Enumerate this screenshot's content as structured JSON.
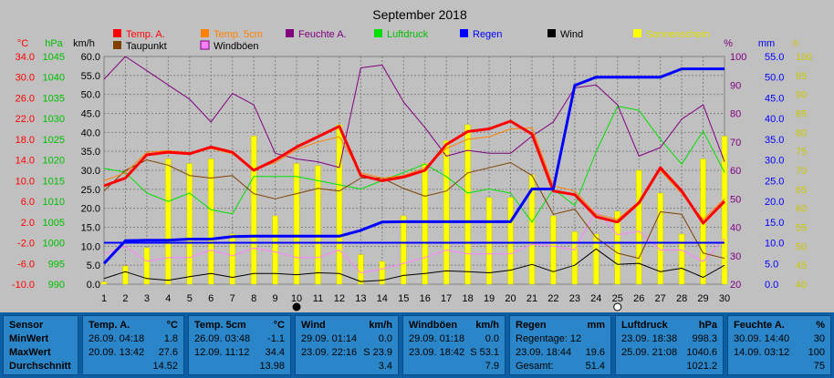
{
  "chart_data": {
    "type": "line",
    "title": "September 2018",
    "x": [
      1,
      2,
      3,
      4,
      5,
      6,
      7,
      8,
      9,
      10,
      11,
      12,
      13,
      14,
      15,
      16,
      17,
      18,
      19,
      20,
      21,
      22,
      23,
      24,
      25,
      26,
      27,
      28,
      29,
      30
    ],
    "axes": {
      "temp": {
        "label": "°C",
        "ticks": [
          "34.0",
          "30.0",
          "26.0",
          "22.0",
          "18.0",
          "14.0",
          "10.0",
          "6.0",
          "2.0",
          "-2.0",
          "-6.0",
          "-10.0"
        ],
        "color": "#ff0000"
      },
      "hpa": {
        "label": "hPa",
        "ticks": [
          "1045",
          "1040",
          "1035",
          "1030",
          "1025",
          "1020",
          "1015",
          "1010",
          "1005",
          "1000",
          "995",
          "990"
        ],
        "color": "#00c000"
      },
      "kmh": {
        "label": "km/h",
        "ticks": [
          "60.0",
          "55.0",
          "50.0",
          "45.0",
          "40.0",
          "35.0",
          "30.0",
          "25.0",
          "20.0",
          "15.0",
          "10.0",
          "5.0",
          "0.0"
        ],
        "color": "#000000"
      },
      "pct": {
        "label": "%",
        "ticks": [
          "100",
          "90",
          "80",
          "70",
          "60",
          "50",
          "40",
          "30",
          "20"
        ],
        "color": "#800080"
      },
      "mm": {
        "label": "mm",
        "ticks": [
          "55.0",
          "50.0",
          "45.0",
          "40.0",
          "35.0",
          "30.0",
          "25.0",
          "20.0",
          "15.0",
          "10.0",
          "5.0",
          "0.0"
        ],
        "color": "#0000ff"
      },
      "h": {
        "label": "h",
        "ticks": [
          "100",
          "95",
          "90",
          "85",
          "80",
          "75",
          "70",
          "65",
          "60",
          "55",
          "50",
          "45",
          "40"
        ],
        "color": "#c8c800"
      }
    },
    "legend": [
      {
        "name": "Temp. A.",
        "color": "#ff0000"
      },
      {
        "name": "Temp. 5cm",
        "color": "#ff8000"
      },
      {
        "name": "Feuchte A.",
        "color": "#800080"
      },
      {
        "name": "Luftdruck",
        "color": "#00e000"
      },
      {
        "name": "Regen",
        "color": "#0000ff"
      },
      {
        "name": "Wind",
        "color": "#000000"
      },
      {
        "name": "Sonnenschein",
        "color": "#ffff00"
      },
      {
        "name": "Taupunkt",
        "color": "#804000"
      },
      {
        "name": "Windböen",
        "color": "#ff80ff"
      }
    ],
    "series": {
      "temp_a": [
        9.0,
        10.5,
        15.0,
        15.5,
        15.2,
        16.5,
        15.5,
        12.0,
        14.0,
        16.5,
        18.5,
        20.5,
        11.0,
        10.0,
        10.7,
        12.0,
        17.0,
        19.5,
        20.0,
        21.5,
        19.0,
        8.0,
        7.3,
        3.0,
        2.0,
        5.7,
        12.5,
        8.0,
        1.8,
        6.0
      ],
      "temp_5cm": [
        10.0,
        11.5,
        15.5,
        15.8,
        15.4,
        16.2,
        15.2,
        12.2,
        13.5,
        16.0,
        17.5,
        18.5,
        11.5,
        10.5,
        11.0,
        12.5,
        16.2,
        18.0,
        18.5,
        20.0,
        20.2,
        9.0,
        8.0,
        3.5,
        2.5,
        6.0,
        12.0,
        7.5,
        2.5,
        6.5
      ],
      "taupunkt": [
        8.0,
        12.0,
        14.0,
        13.0,
        11.0,
        10.5,
        11.0,
        7.5,
        6.5,
        7.5,
        8.5,
        8.0,
        10.5,
        10.5,
        8.5,
        7.0,
        8.0,
        11.5,
        12.5,
        13.5,
        11.0,
        3.5,
        4.5,
        -1.0,
        -4.0,
        -5.0,
        4.0,
        3.5,
        -4.0,
        -5.0
      ],
      "feuchte": [
        92,
        100,
        95,
        90,
        85,
        77,
        87,
        83,
        66,
        64,
        63,
        61,
        96,
        97,
        84,
        75,
        65,
        67,
        66,
        66,
        72,
        77,
        89,
        90,
        83,
        65,
        68,
        78,
        83,
        63
      ],
      "luftdruck": [
        1018,
        1017,
        1012,
        1010,
        1012,
        1008,
        1007,
        1016,
        1016,
        1016,
        1015,
        1014,
        1013,
        1015,
        1017,
        1019,
        1016,
        1012,
        1013,
        1012,
        1005,
        1013,
        1009,
        1022,
        1033,
        1032,
        1025,
        1019,
        1027,
        1017
      ],
      "regen": [
        5.0,
        10.5,
        10.6,
        10.6,
        10.9,
        10.9,
        11.5,
        11.6,
        11.6,
        11.6,
        11.6,
        11.6,
        13.0,
        15.0,
        15.1,
        15.1,
        15.1,
        15.1,
        15.1,
        15.1,
        23.0,
        23.0,
        48.0,
        50.0,
        50.0,
        50.0,
        50.0,
        52.0,
        52.0,
        52.0
      ],
      "regen_baseline": 10.0,
      "wind": [
        1.5,
        3.3,
        1.5,
        1.0,
        2.0,
        2.8,
        1.8,
        2.8,
        2.8,
        2.5,
        3.0,
        2.8,
        0.7,
        1.0,
        2.3,
        2.8,
        3.5,
        3.3,
        3.0,
        3.7,
        5.2,
        3.3,
        5.0,
        9.3,
        5.2,
        5.5,
        3.3,
        4.2,
        1.8,
        5.0
      ],
      "windboeen": [
        8.0,
        10.0,
        6.0,
        7.0,
        7.0,
        9.0,
        7.5,
        9.5,
        8.5,
        7.0,
        7.0,
        9.0,
        3.0,
        4.0,
        5.5,
        7.0,
        9.0,
        8.0,
        8.0,
        8.0,
        10.5,
        10.0,
        9.0,
        19.5,
        13.0,
        14.0,
        9.0,
        9.0,
        6.0,
        12.0
      ],
      "sonnenschein": [
        0.1,
        0.8,
        1.6,
        5.5,
        5.3,
        5.5,
        2.2,
        6.5,
        3.0,
        5.3,
        5.2,
        7.0,
        1.3,
        1.0,
        3.0,
        5.3,
        6.3,
        7.0,
        3.8,
        3.8,
        4.8,
        3.0,
        2.3,
        2.2,
        3.2,
        5.0,
        4.0,
        2.2,
        5.5,
        6.5
      ]
    },
    "markers": [
      "10",
      "25"
    ]
  },
  "stats": [
    {
      "title": "Sensor",
      "unit": "",
      "rows": [
        "MinWert",
        "MaxWert",
        "Durchschnitt"
      ]
    },
    {
      "title": "Temp. A.",
      "unit": "°C",
      "rows": [
        [
          "26.09.",
          "04:18",
          "1.8"
        ],
        [
          "20.09.",
          "13:42",
          "27.6"
        ],
        [
          "",
          "",
          "14.52"
        ]
      ]
    },
    {
      "title": "Temp. 5cm",
      "unit": "°C",
      "rows": [
        [
          "26.09.",
          "03:48",
          "-1.1"
        ],
        [
          "12.09.",
          "11:12",
          "34.4"
        ],
        [
          "",
          "",
          "13.98"
        ]
      ]
    },
    {
      "title": "Wind",
      "unit": "km/h",
      "rows": [
        [
          "29.09.",
          "01:14",
          "0.0"
        ],
        [
          "23.09.",
          "22:16",
          "S 23.9"
        ],
        [
          "",
          "",
          "3.4"
        ]
      ]
    },
    {
      "title": "Windböen",
      "unit": "km/h",
      "rows": [
        [
          "29.09.",
          "01:18",
          "0.0"
        ],
        [
          "23.09.",
          "18:42",
          "S 53.1"
        ],
        [
          "",
          "",
          "7.9"
        ]
      ]
    },
    {
      "title": "Regen",
      "unit": "mm",
      "rows": [
        [
          "Regentage: 12",
          "",
          ""
        ],
        [
          "23.09.",
          "18:44",
          "19.6"
        ],
        [
          "Gesamt:",
          "",
          "51.4"
        ]
      ]
    },
    {
      "title": "Luftdruck",
      "unit": "hPa",
      "rows": [
        [
          "23.09.",
          "18:38",
          "998.3"
        ],
        [
          "25.09.",
          "21:08",
          "1040.6"
        ],
        [
          "",
          "",
          "1021.2"
        ]
      ]
    },
    {
      "title": "Feuchte A.",
      "unit": "%",
      "rows": [
        [
          "30.09.",
          "14:40",
          "30"
        ],
        [
          "14.09.",
          "03:12",
          "100"
        ],
        [
          "",
          "",
          "75"
        ]
      ]
    }
  ]
}
